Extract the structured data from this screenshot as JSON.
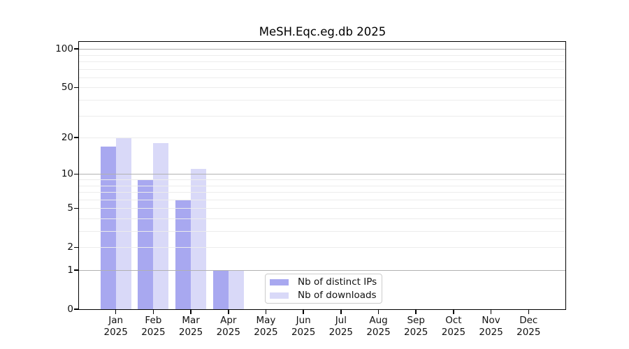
{
  "title": "MeSH.Eqc.eg.db 2025",
  "chart_data": {
    "type": "bar",
    "title": "MeSH.Eqc.eg.db 2025",
    "categories": [
      "Jan",
      "Feb",
      "Mar",
      "Apr",
      "May",
      "Jun",
      "Jul",
      "Aug",
      "Sep",
      "Oct",
      "Nov",
      "Dec"
    ],
    "category_year": "2025",
    "series": [
      {
        "name": "Nb of distinct IPs",
        "color": "#a8a8f0",
        "values": [
          17,
          9,
          6,
          1,
          0,
          0,
          0,
          0,
          0,
          0,
          0,
          0
        ]
      },
      {
        "name": "Nb of downloads",
        "color": "#d9d9f8",
        "values": [
          20,
          18,
          11,
          1,
          0,
          0,
          0,
          0,
          0,
          0,
          0,
          0
        ]
      }
    ],
    "yscale": "log10(1+x)",
    "yticks": [
      0,
      1,
      2,
      5,
      10,
      20,
      50,
      100
    ],
    "ylim": [
      0,
      114
    ],
    "xlabel": "",
    "ylabel": "",
    "grid": "on",
    "legend_position": "inside-bottom-center"
  },
  "colors": {
    "grid_minor": "#ececec",
    "grid_major": "#b1b1b1",
    "spine": "#000000",
    "legend_border": "#cccccc"
  }
}
